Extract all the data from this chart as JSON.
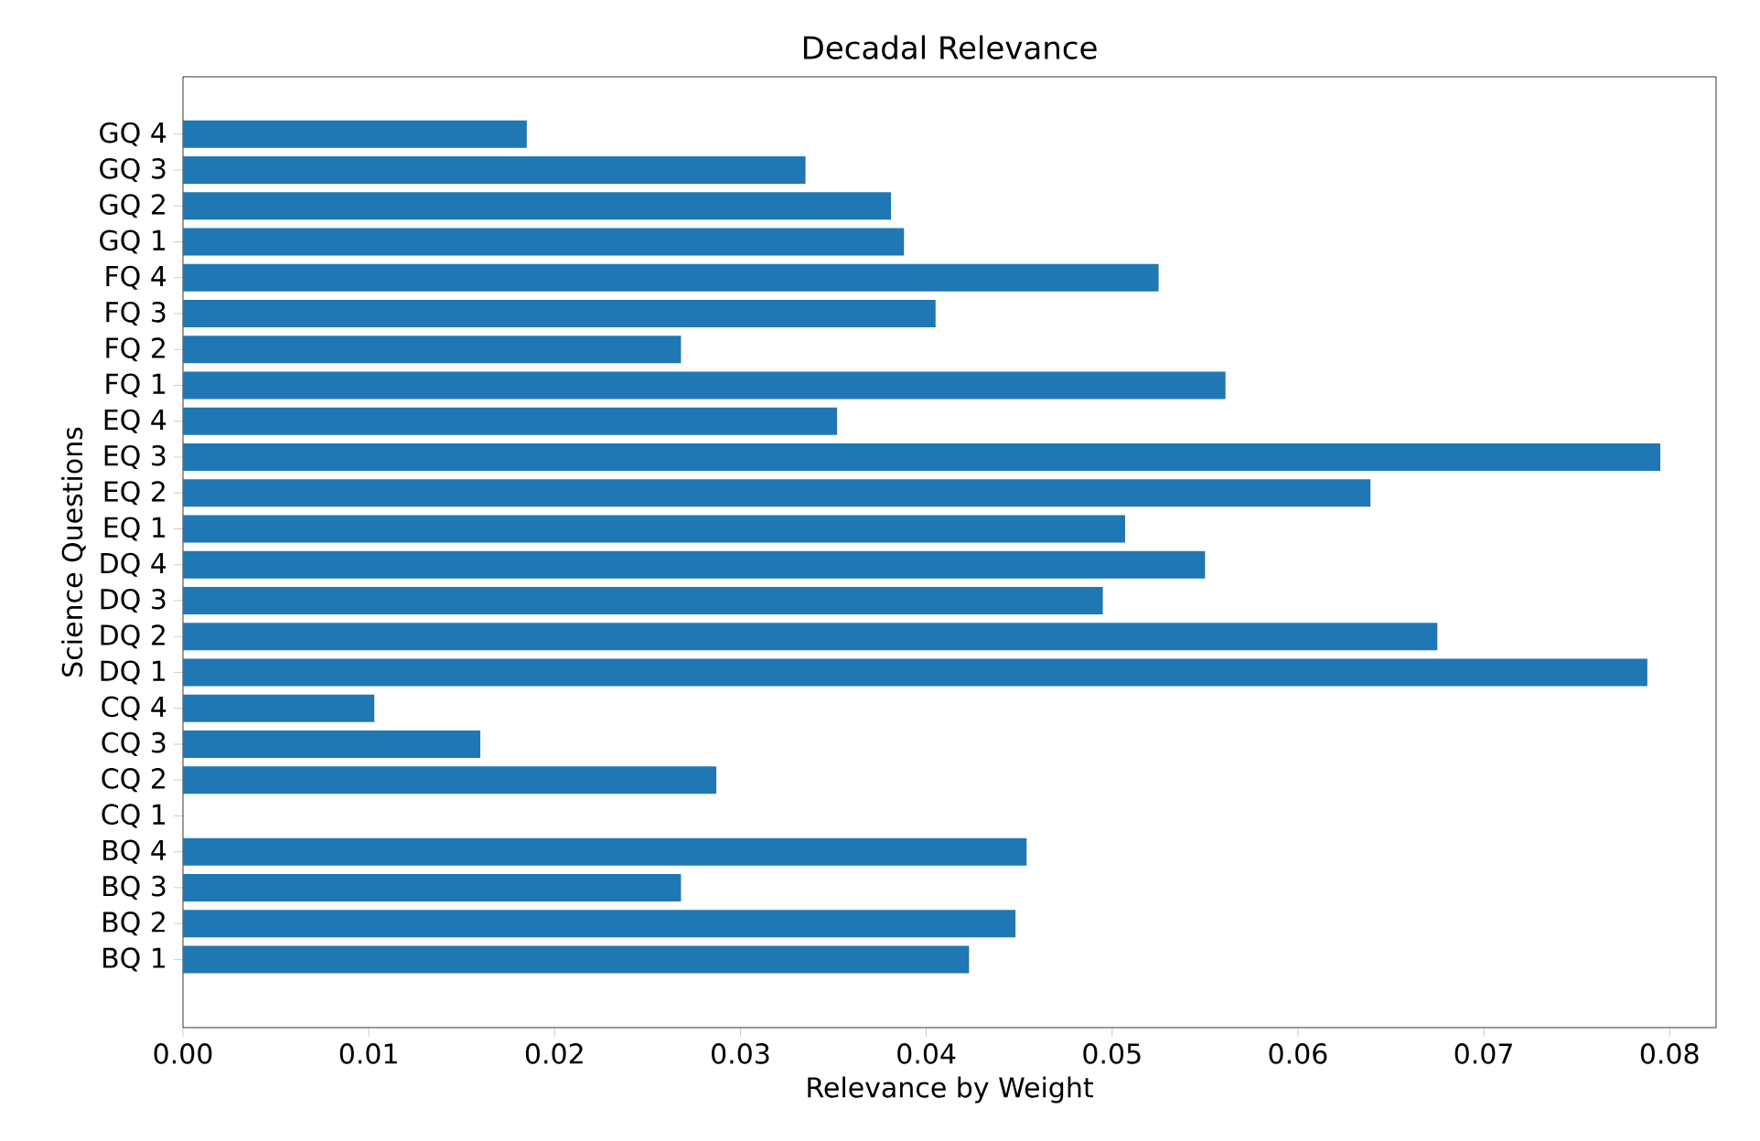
{
  "chart_data": {
    "type": "bar",
    "orientation": "horizontal",
    "title": "Decadal Relevance",
    "xlabel": "Relevance by Weight",
    "ylabel": "Science Questions",
    "categories": [
      "GQ 4",
      "GQ 3",
      "GQ 2",
      "GQ 1",
      "FQ 4",
      "FQ 3",
      "FQ 2",
      "FQ 1",
      "EQ 4",
      "EQ 3",
      "EQ 2",
      "EQ 1",
      "DQ 4",
      "DQ 3",
      "DQ 2",
      "DQ 1",
      "CQ 4",
      "CQ 3",
      "CQ 2",
      "CQ 1",
      "BQ 4",
      "BQ 3",
      "BQ 2",
      "BQ 1"
    ],
    "values": [
      0.0185,
      0.0335,
      0.0381,
      0.0388,
      0.0525,
      0.0405,
      0.0268,
      0.0561,
      0.0352,
      0.0795,
      0.0639,
      0.0507,
      0.055,
      0.0495,
      0.0675,
      0.0788,
      0.0103,
      0.016,
      0.0287,
      0,
      0.0454,
      0.0268,
      0.0448,
      0.0423
    ],
    "color": "#1f77b4",
    "xlim": [
      0,
      0.0825
    ],
    "xticks": [
      {
        "value": 0,
        "label": "0.00"
      },
      0.01,
      0.02,
      0.03,
      0.04,
      0.05,
      0.06,
      0.07,
      0.08
    ],
    "grid": false
  }
}
